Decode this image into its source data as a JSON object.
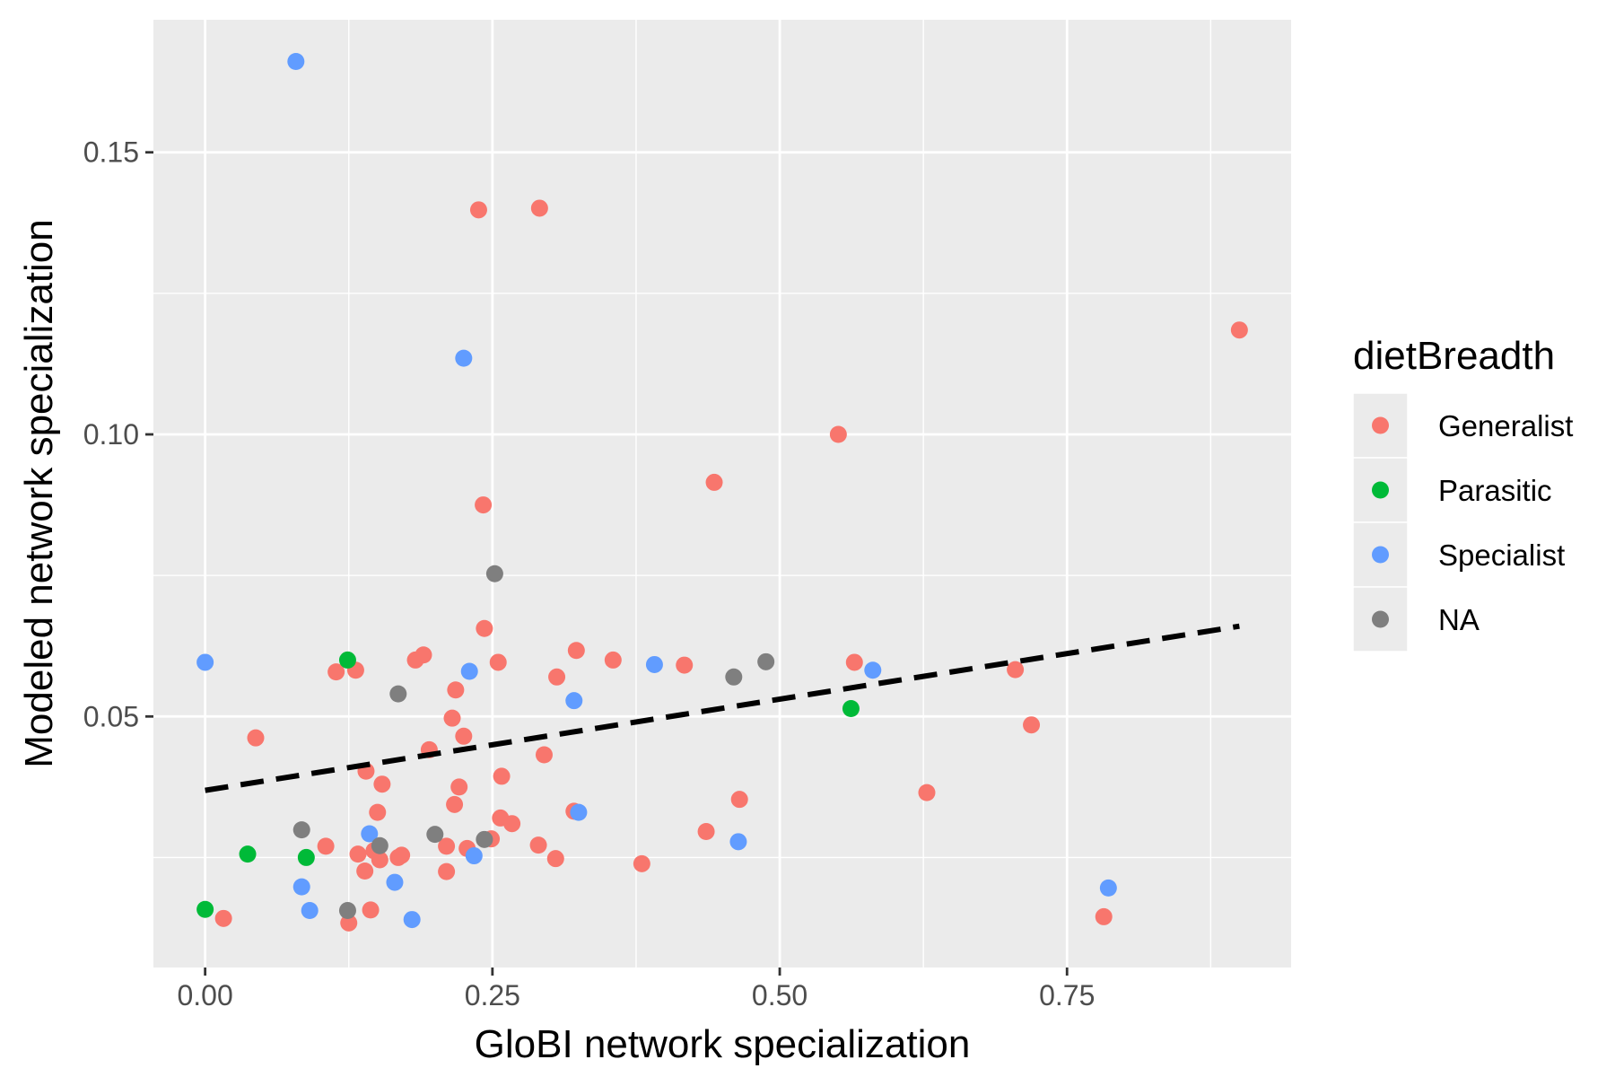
{
  "chart_data": {
    "type": "scatter",
    "xlabel": "GloBI network specialization",
    "ylabel": "Modeled network specialization",
    "xlim": [
      -0.045,
      0.945
    ],
    "ylim": [
      0.0055,
      0.1735
    ],
    "x_ticks": [
      0,
      0.25,
      0.5,
      0.75
    ],
    "x_tick_labels": [
      "0.00",
      "0.25",
      "0.50",
      "0.75"
    ],
    "y_ticks": [
      0.05,
      0.1,
      0.15
    ],
    "y_tick_labels": [
      "0.05",
      "0.10",
      "0.15"
    ],
    "grid": true,
    "background": "#ebebeb",
    "legend": {
      "title": "dietBreadth",
      "placement": "right",
      "entries": [
        {
          "label": "Generalist",
          "color": "#f8766d"
        },
        {
          "label": "Parasitic",
          "color": "#00ba38"
        },
        {
          "label": "Specialist",
          "color": "#619cff"
        },
        {
          "label": "NA",
          "color": "#7f7f7f"
        }
      ]
    },
    "series": [
      {
        "name": "Generalist",
        "color": "#f8766d",
        "points": [
          [
            0.238,
            0.1398
          ],
          [
            0.291,
            0.1401
          ],
          [
            0.9,
            0.1185
          ],
          [
            0.551,
            0.1
          ],
          [
            0.443,
            0.0915
          ],
          [
            0.242,
            0.0875
          ],
          [
            0.243,
            0.0656
          ],
          [
            0.323,
            0.0617
          ],
          [
            0.355,
            0.06
          ],
          [
            0.255,
            0.0596
          ],
          [
            0.19,
            0.0609
          ],
          [
            0.183,
            0.06
          ],
          [
            0.114,
            0.0579
          ],
          [
            0.131,
            0.0582
          ],
          [
            0.565,
            0.0596
          ],
          [
            0.417,
            0.0591
          ],
          [
            0.306,
            0.057
          ],
          [
            0.218,
            0.0547
          ],
          [
            0.215,
            0.0497
          ],
          [
            0.225,
            0.0465
          ],
          [
            0.044,
            0.0462
          ],
          [
            0.195,
            0.0441
          ],
          [
            0.295,
            0.0432
          ],
          [
            0.705,
            0.0583
          ],
          [
            0.719,
            0.0485
          ],
          [
            0.14,
            0.0403
          ],
          [
            0.154,
            0.038
          ],
          [
            0.258,
            0.0394
          ],
          [
            0.221,
            0.0375
          ],
          [
            0.217,
            0.0344
          ],
          [
            0.465,
            0.0353
          ],
          [
            0.15,
            0.033
          ],
          [
            0.257,
            0.032
          ],
          [
            0.267,
            0.031
          ],
          [
            0.321,
            0.0332
          ],
          [
            0.628,
            0.0365
          ],
          [
            0.436,
            0.0296
          ],
          [
            0.249,
            0.0283
          ],
          [
            0.105,
            0.027
          ],
          [
            0.21,
            0.027
          ],
          [
            0.228,
            0.0266
          ],
          [
            0.29,
            0.0272
          ],
          [
            0.133,
            0.0256
          ],
          [
            0.147,
            0.0262
          ],
          [
            0.152,
            0.0246
          ],
          [
            0.171,
            0.0254
          ],
          [
            0.168,
            0.025
          ],
          [
            0.305,
            0.0248
          ],
          [
            0.38,
            0.0239
          ],
          [
            0.139,
            0.0226
          ],
          [
            0.21,
            0.0225
          ],
          [
            0.144,
            0.0157
          ],
          [
            0.016,
            0.0142
          ],
          [
            0.125,
            0.0134
          ],
          [
            0.782,
            0.0145
          ]
        ]
      },
      {
        "name": "Parasitic",
        "color": "#00ba38",
        "points": [
          [
            0.124,
            0.06
          ],
          [
            0.562,
            0.0514
          ],
          [
            0.037,
            0.0256
          ],
          [
            0.088,
            0.025
          ],
          [
            0.0,
            0.0158
          ]
        ]
      },
      {
        "name": "Specialist",
        "color": "#619cff",
        "points": [
          [
            0.079,
            0.1661
          ],
          [
            0.225,
            0.1135
          ],
          [
            0.0,
            0.0596
          ],
          [
            0.23,
            0.058
          ],
          [
            0.391,
            0.0592
          ],
          [
            0.321,
            0.0528
          ],
          [
            0.581,
            0.0582
          ],
          [
            0.325,
            0.033
          ],
          [
            0.143,
            0.0292
          ],
          [
            0.464,
            0.0278
          ],
          [
            0.234,
            0.0253
          ],
          [
            0.165,
            0.0206
          ],
          [
            0.084,
            0.0198
          ],
          [
            0.091,
            0.0156
          ],
          [
            0.18,
            0.014
          ],
          [
            0.786,
            0.0196
          ]
        ]
      },
      {
        "name": "NA",
        "color": "#7f7f7f",
        "points": [
          [
            0.252,
            0.0753
          ],
          [
            0.168,
            0.054
          ],
          [
            0.46,
            0.057
          ],
          [
            0.488,
            0.0597
          ],
          [
            0.084,
            0.0299
          ],
          [
            0.2,
            0.0291
          ],
          [
            0.152,
            0.0271
          ],
          [
            0.243,
            0.0282
          ],
          [
            0.124,
            0.0156
          ]
        ]
      }
    ],
    "trend_line": {
      "x": [
        0.0,
        0.9
      ],
      "y": [
        0.0369,
        0.066
      ],
      "style": "dashed",
      "color": "#000000"
    }
  }
}
